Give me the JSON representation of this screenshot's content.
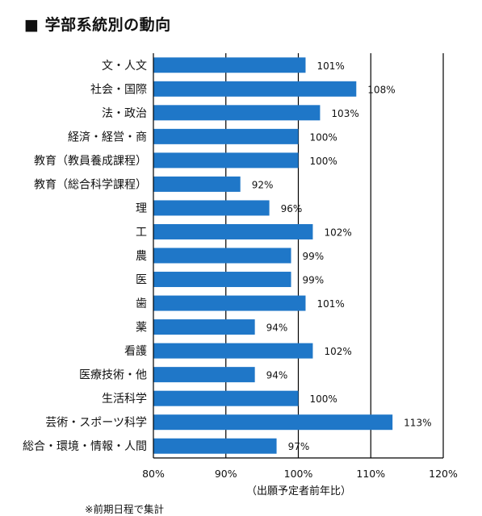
{
  "title": "■ 学部系統別の動向",
  "footnote": "※前期日程で集計",
  "colors": {
    "bar": "#1f77c8",
    "axis": "#000000",
    "background": "#ffffff"
  },
  "chart_data": {
    "type": "bar",
    "orientation": "horizontal",
    "title": "学部系統別の動向",
    "xlabel": "（出願予定者前年比）",
    "ylabel": "",
    "xlim": [
      80,
      120
    ],
    "xticks": [
      80,
      90,
      100,
      110,
      120
    ],
    "xtick_labels": [
      "80%",
      "90%",
      "100%",
      "110%",
      "120%"
    ],
    "grid": "vertical at 90, 100, 110, 120",
    "legend": "none",
    "categories": [
      "文・人文",
      "社会・国際",
      "法・政治",
      "経済・経営・商",
      "教育（教員養成課程）",
      "教育（総合科学課程）",
      "理",
      "工",
      "農",
      "医",
      "歯",
      "薬",
      "看護",
      "医療技術・他",
      "生活科学",
      "芸術・スポーツ科学",
      "総合・環境・情報・人間"
    ],
    "values": [
      101,
      108,
      103,
      100,
      100,
      92,
      96,
      102,
      99,
      99,
      101,
      94,
      102,
      94,
      100,
      113,
      97
    ],
    "value_labels": [
      "101%",
      "108%",
      "103%",
      "100%",
      "100%",
      "92%",
      "96%",
      "102%",
      "99%",
      "99%",
      "101%",
      "94%",
      "102%",
      "94%",
      "100%",
      "113%",
      "97%"
    ]
  }
}
